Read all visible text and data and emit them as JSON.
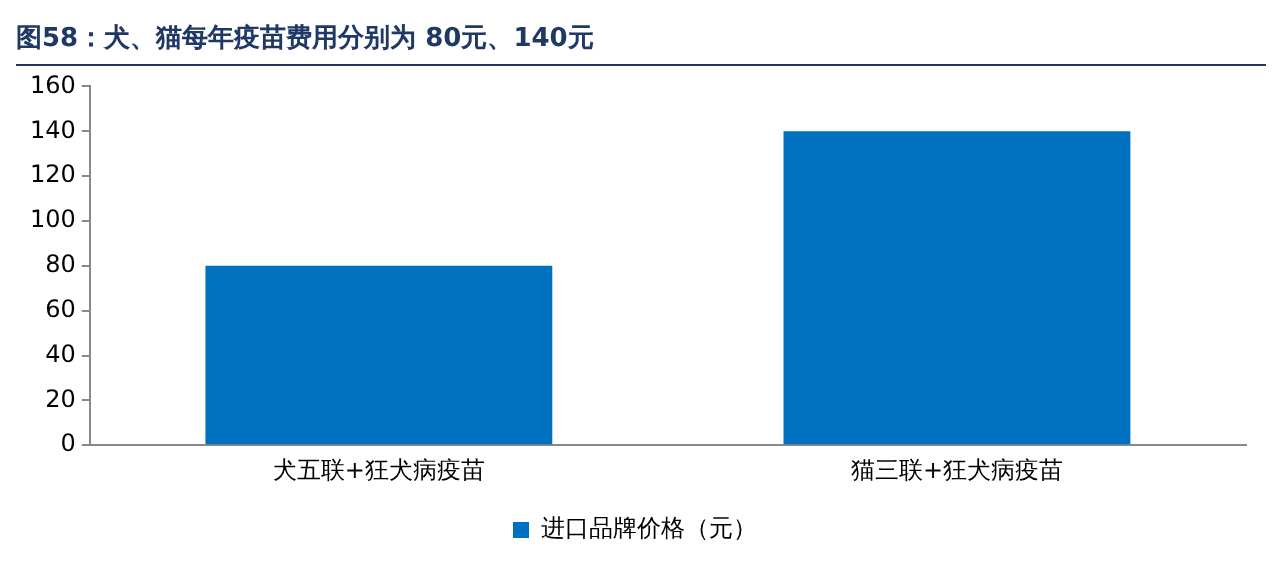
{
  "chart_data": {
    "type": "bar",
    "title": "图58：犬、猫每年疫苗费用分别为 80元、140元",
    "categories": [
      "犬五联+狂犬病疫苗",
      "猫三联+狂犬病疫苗"
    ],
    "series": [
      {
        "name": "进口品牌价格（元）",
        "color": "#0070c0",
        "values": [
          80,
          140
        ]
      }
    ],
    "ylim": [
      0,
      160
    ],
    "yticks": [
      0,
      20,
      40,
      60,
      80,
      100,
      120,
      140,
      160
    ],
    "grid": false,
    "legend": "bottom"
  }
}
